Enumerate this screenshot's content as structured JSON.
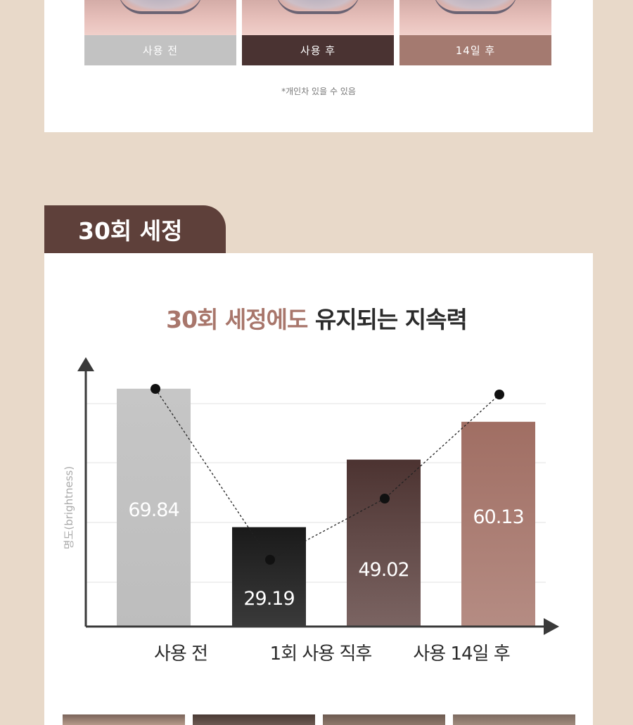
{
  "comparison": {
    "labels": [
      {
        "text": "사용 전",
        "color": "#c2c2c2"
      },
      {
        "text": "사용 후",
        "color": "#4a3332"
      },
      {
        "text": "14일 후",
        "color": "#a47a70"
      }
    ],
    "note": "*개인차 있을 수 있음"
  },
  "section": {
    "tab_label": "30회 세정",
    "title_accent": "30회 세정에도",
    "title_rest": " 유지되는 지속력"
  },
  "chart_data": {
    "type": "bar",
    "title": "30회 세정에도 유지되는 지속력",
    "ylabel": "명도(brightness)",
    "xlabel": "",
    "categories": [
      "사용 전",
      "1회 사용 직후",
      "",
      "사용 14일 후"
    ],
    "values": [
      69.84,
      29.19,
      49.02,
      60.13
    ],
    "value_labels": [
      "69.84",
      "29.19",
      "49.02",
      "60.13"
    ],
    "category_tick_labels": [
      "사용 전",
      "1회 사용 직후",
      "사용 14일 후"
    ],
    "series_overlay": "line",
    "line_values": [
      69.84,
      29.19,
      49.02,
      60.13
    ],
    "bar_colors": [
      [
        "#c6c6c6",
        "#bdbdbd"
      ],
      [
        "#1a1a1a",
        "#3a3a3a"
      ],
      [
        "#4c3331",
        "#7b6462"
      ],
      [
        "#a06e63",
        "#b58c83"
      ]
    ],
    "ylim": [
      0,
      70
    ],
    "grid": true
  }
}
